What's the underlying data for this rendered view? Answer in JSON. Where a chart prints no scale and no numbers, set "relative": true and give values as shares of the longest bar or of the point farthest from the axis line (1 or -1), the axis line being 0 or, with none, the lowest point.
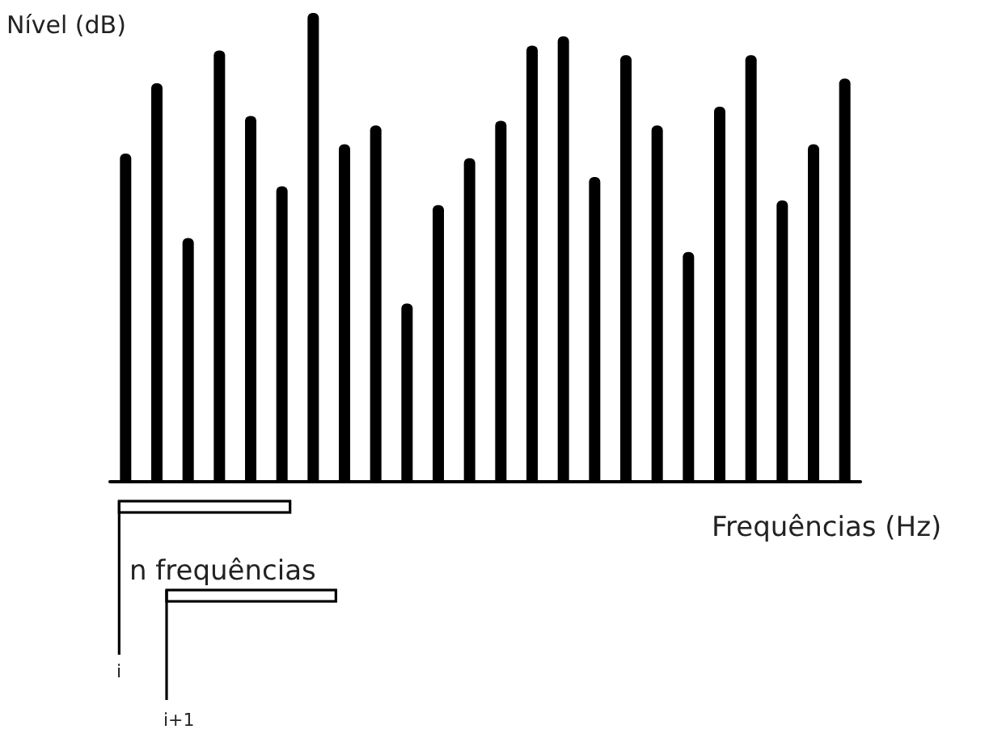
{
  "chart_data": {
    "type": "bar",
    "relative": true,
    "ylabel": "Nível (dB)",
    "xlabel": "Frequências (Hz)",
    "categories": [
      null,
      null,
      null,
      null,
      null,
      null,
      null,
      null,
      null,
      null,
      null,
      null,
      null,
      null,
      null,
      null,
      null,
      null,
      null,
      null,
      null,
      null,
      null,
      null
    ],
    "values": [
      0.7,
      0.85,
      0.52,
      0.92,
      0.78,
      0.63,
      1,
      0.72,
      0.76,
      0.38,
      0.59,
      0.69,
      0.77,
      0.93,
      0.95,
      0.65,
      0.91,
      0.76,
      0.49,
      0.8,
      0.91,
      0.6,
      0.72,
      0.86
    ],
    "color": "#000000",
    "annotations": [
      "n frequências",
      "i",
      "i+1"
    ],
    "grid": false
  }
}
